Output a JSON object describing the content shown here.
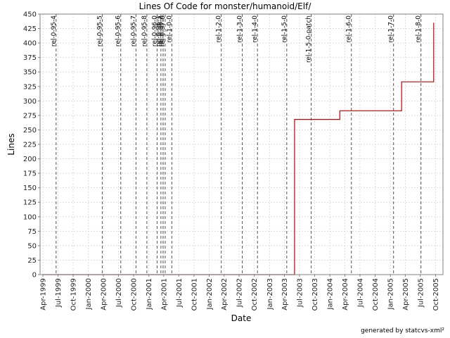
{
  "chart_data": {
    "type": "line",
    "title": "Lines Of Code for monster/humanoid/Elf/",
    "xlabel": "Date",
    "ylabel": "Lines",
    "ylim": [
      0,
      450
    ],
    "yticks": [
      0,
      25,
      50,
      75,
      100,
      125,
      150,
      175,
      200,
      225,
      250,
      275,
      300,
      325,
      350,
      375,
      400,
      425,
      450
    ],
    "xlim": [
      "1999-03-15",
      "2005-11-15"
    ],
    "xticks": [
      {
        "date": "1999-04-01",
        "label": "Apr-1999"
      },
      {
        "date": "1999-07-01",
        "label": "Jul-1999"
      },
      {
        "date": "1999-10-01",
        "label": "Oct-1999"
      },
      {
        "date": "2000-01-01",
        "label": "Jan-2000"
      },
      {
        "date": "2000-04-01",
        "label": "Apr-2000"
      },
      {
        "date": "2000-07-01",
        "label": "Jul-2000"
      },
      {
        "date": "2000-10-01",
        "label": "Oct-2000"
      },
      {
        "date": "2001-01-01",
        "label": "Jan-2001"
      },
      {
        "date": "2001-04-01",
        "label": "Apr-2001"
      },
      {
        "date": "2001-07-01",
        "label": "Jul-2001"
      },
      {
        "date": "2001-10-01",
        "label": "Oct-2001"
      },
      {
        "date": "2002-01-01",
        "label": "Jan-2002"
      },
      {
        "date": "2002-04-01",
        "label": "Apr-2002"
      },
      {
        "date": "2002-07-01",
        "label": "Jul-2002"
      },
      {
        "date": "2002-10-01",
        "label": "Oct-2002"
      },
      {
        "date": "2003-01-01",
        "label": "Jan-2003"
      },
      {
        "date": "2003-04-01",
        "label": "Apr-2003"
      },
      {
        "date": "2003-07-01",
        "label": "Jul-2003"
      },
      {
        "date": "2003-10-01",
        "label": "Oct-2003"
      },
      {
        "date": "2004-01-01",
        "label": "Jan-2004"
      },
      {
        "date": "2004-04-01",
        "label": "Apr-2004"
      },
      {
        "date": "2004-07-01",
        "label": "Jul-2004"
      },
      {
        "date": "2004-10-01",
        "label": "Oct-2004"
      },
      {
        "date": "2005-01-01",
        "label": "Jan-2005"
      },
      {
        "date": "2005-04-01",
        "label": "Apr-2005"
      },
      {
        "date": "2005-07-01",
        "label": "Jul-2005"
      },
      {
        "date": "2005-10-01",
        "label": "Oct-2005"
      }
    ],
    "series": [
      {
        "color": "#cc0000",
        "step": true,
        "points": [
          {
            "x": "1999-04-01",
            "y": 0
          },
          {
            "x": "2003-06-01",
            "y": 0
          },
          {
            "x": "2003-06-01",
            "y": 268
          },
          {
            "x": "2004-03-01",
            "y": 268
          },
          {
            "x": "2004-03-01",
            "y": 283
          },
          {
            "x": "2005-03-10",
            "y": 283
          },
          {
            "x": "2005-03-10",
            "y": 333
          },
          {
            "x": "2005-09-20",
            "y": 333
          },
          {
            "x": "2005-09-20",
            "y": 435
          }
        ]
      }
    ],
    "releases": [
      {
        "date": "1999-06-20",
        "label": "rel-0-95-4"
      },
      {
        "date": "2000-03-25",
        "label": "rel-0-95-5"
      },
      {
        "date": "2000-07-15",
        "label": "rel-0-95-6"
      },
      {
        "date": "2000-10-15",
        "label": "rel-0-95-7"
      },
      {
        "date": "2000-12-20",
        "label": "rel-0-95-8"
      },
      {
        "date": "2001-02-20",
        "label": "rel-0-96-0"
      },
      {
        "date": "2001-03-15",
        "label": "rel-0-96-1"
      },
      {
        "date": "2001-03-28",
        "label": "rel-0-96-2"
      },
      {
        "date": "2001-04-10",
        "label": "rel-0-97-0"
      },
      {
        "date": "2001-05-20",
        "label": "rel-1-0-0"
      },
      {
        "date": "2002-03-15",
        "label": "rel-1-2-0"
      },
      {
        "date": "2002-07-20",
        "label": "rel-1-3-0"
      },
      {
        "date": "2002-10-20",
        "label": "rel-1-4-0"
      },
      {
        "date": "2003-04-15",
        "label": "rel-1-5-0"
      },
      {
        "date": "2003-09-10",
        "label": "rel-1-5-0-patch"
      },
      {
        "date": "2004-05-10",
        "label": "rel-1-6-0"
      },
      {
        "date": "2005-01-20",
        "label": "rel-1-7-0"
      },
      {
        "date": "2005-07-05",
        "label": "rel-1-8-0"
      }
    ],
    "colors": {
      "background": "#ffffff",
      "plot_border": "#808080",
      "grid": "#dddddd",
      "release_line": "#555555"
    },
    "grid": true,
    "legend": "none"
  },
  "footer": "generated by statcvs-xml²"
}
